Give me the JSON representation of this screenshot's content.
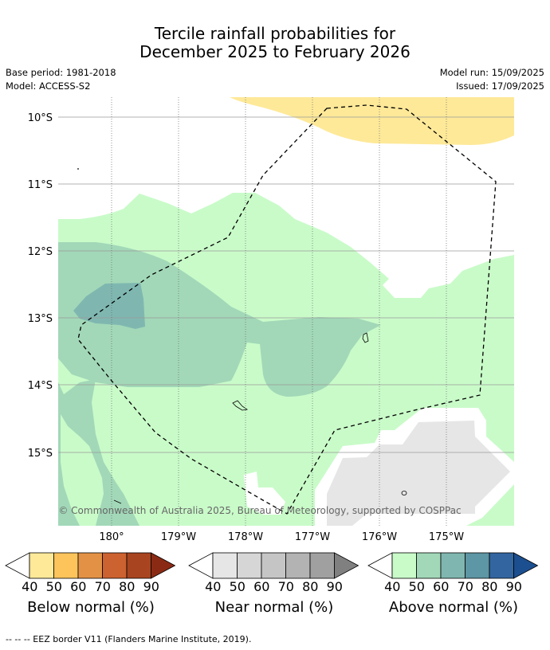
{
  "header": {
    "title_line1": "Tercile rainfall probabilities for",
    "title_line2": "December 2025 to February 2026",
    "base_period": "Base period: 1981-2018",
    "model": "Model: ACCESS-S2",
    "model_run": "Model run: 15/09/2025",
    "issued": "Issued: 17/09/2025"
  },
  "map": {
    "lat_labels": [
      "10°S",
      "11°S",
      "12°S",
      "13°S",
      "14°S",
      "15°S"
    ],
    "lon_labels": [
      "180°",
      "179°W",
      "178°W",
      "177°W",
      "176°W",
      "175°W"
    ],
    "copyright": "© Commonwealth of Australia 2025, Bureau of Meteorology, supported by COSPPac"
  },
  "colorbars": [
    {
      "name": "below",
      "title": "Below normal (%)",
      "ticks": [
        "40",
        "50",
        "60",
        "70",
        "80",
        "90"
      ],
      "colors": [
        "#fee999",
        "#fec45c",
        "#e39245",
        "#cc622f",
        "#a8441f",
        "#8b2a14"
      ]
    },
    {
      "name": "near",
      "title": "Near normal (%)",
      "ticks": [
        "40",
        "50",
        "60",
        "70",
        "80",
        "90"
      ],
      "colors": [
        "#e6e6e6",
        "#d6d6d6",
        "#c5c5c5",
        "#b3b3b3",
        "#a0a0a0",
        "#808080"
      ]
    },
    {
      "name": "above",
      "title": "Above normal (%)",
      "ticks": [
        "40",
        "50",
        "60",
        "70",
        "80",
        "90"
      ],
      "colors": [
        "#c9fbc9",
        "#a2d8b8",
        "#7fb7b0",
        "#5d96a4",
        "#3366a0",
        "#1c4f8f"
      ]
    }
  ],
  "footer": {
    "eez_note": "--  --  -- EEZ border V11 (Flanders Marine Institute, 2019)."
  }
}
